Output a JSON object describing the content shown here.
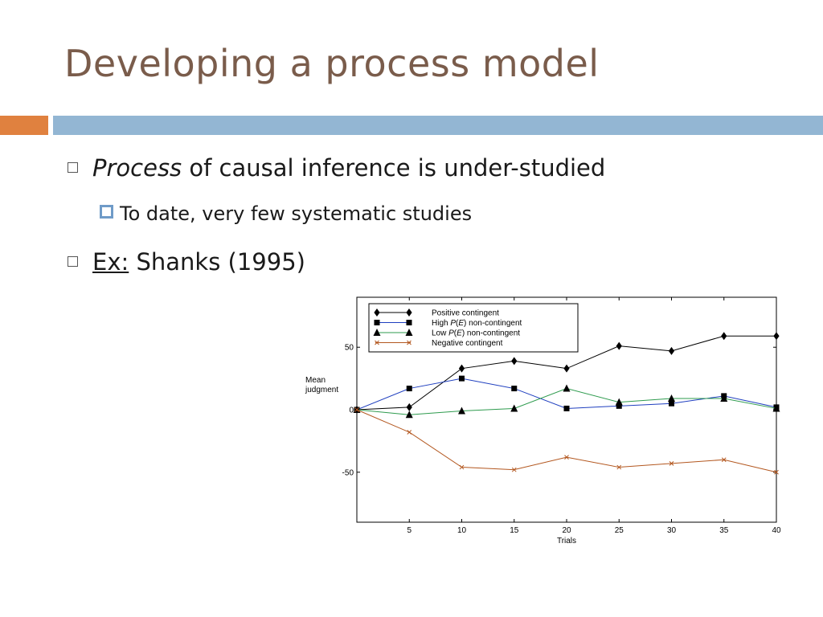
{
  "slide": {
    "title": "Developing a process model",
    "bullets": {
      "b1_italic": "Process",
      "b1_rest": " of causal inference is under-studied",
      "b2": "To date, very few systematic studies",
      "b3_label": "Ex:",
      "b3_rest": " Shanks (1995)"
    },
    "colors": {
      "title": "#7a5c4b",
      "accent_orange": "#e0813f",
      "accent_blue": "#93b6d3"
    }
  },
  "chart_data": {
    "type": "line",
    "xlabel": "Trials",
    "ylabel": "Mean judgment",
    "x_ticks": [
      5,
      10,
      15,
      20,
      25,
      30,
      35,
      40
    ],
    "y_ticks": [
      -50,
      0,
      50
    ],
    "xlim": [
      0,
      40
    ],
    "ylim": [
      -90,
      90
    ],
    "legend_position": "top",
    "x": [
      0,
      5,
      10,
      15,
      20,
      25,
      30,
      35,
      40
    ],
    "series": [
      {
        "name": "Positive contingent",
        "marker": "diamond",
        "color": "#000000",
        "values": [
          0,
          2,
          33,
          39,
          33,
          51,
          47,
          59,
          59
        ]
      },
      {
        "name": "High P(E) non-contingent",
        "marker": "square",
        "color": "#1f3fbf",
        "values": [
          0,
          17,
          25,
          17,
          1,
          3,
          5,
          11,
          2
        ]
      },
      {
        "name": "Low P(E) non-contingent",
        "marker": "triangle",
        "color": "#2e9b4e",
        "values": [
          0,
          -4,
          -1,
          1,
          17,
          6,
          9,
          9,
          1
        ]
      },
      {
        "name": "Negative contingent",
        "marker": "x",
        "color": "#b3571f",
        "values": [
          0,
          -18,
          -46,
          -48,
          -38,
          -46,
          -43,
          -40,
          -50
        ]
      }
    ]
  }
}
